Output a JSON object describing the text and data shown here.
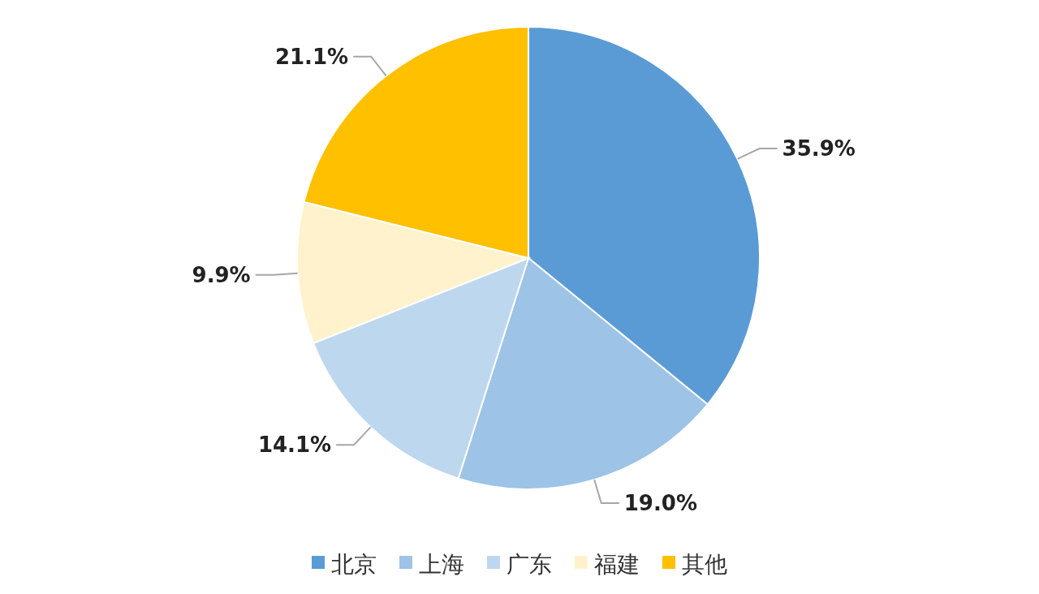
{
  "chart_data": {
    "type": "pie",
    "categories": [
      "北京",
      "上海",
      "广东",
      "福建",
      "其他"
    ],
    "values": [
      35.9,
      19.0,
      14.1,
      9.9,
      21.1
    ],
    "value_labels": [
      "35.9%",
      "19.0%",
      "14.1%",
      "9.9%",
      "21.1%"
    ],
    "colors": [
      "#5b9bd5",
      "#9dc3e6",
      "#bdd7ee",
      "#fff2cc",
      "#ffc000"
    ],
    "legend": "bottom"
  }
}
